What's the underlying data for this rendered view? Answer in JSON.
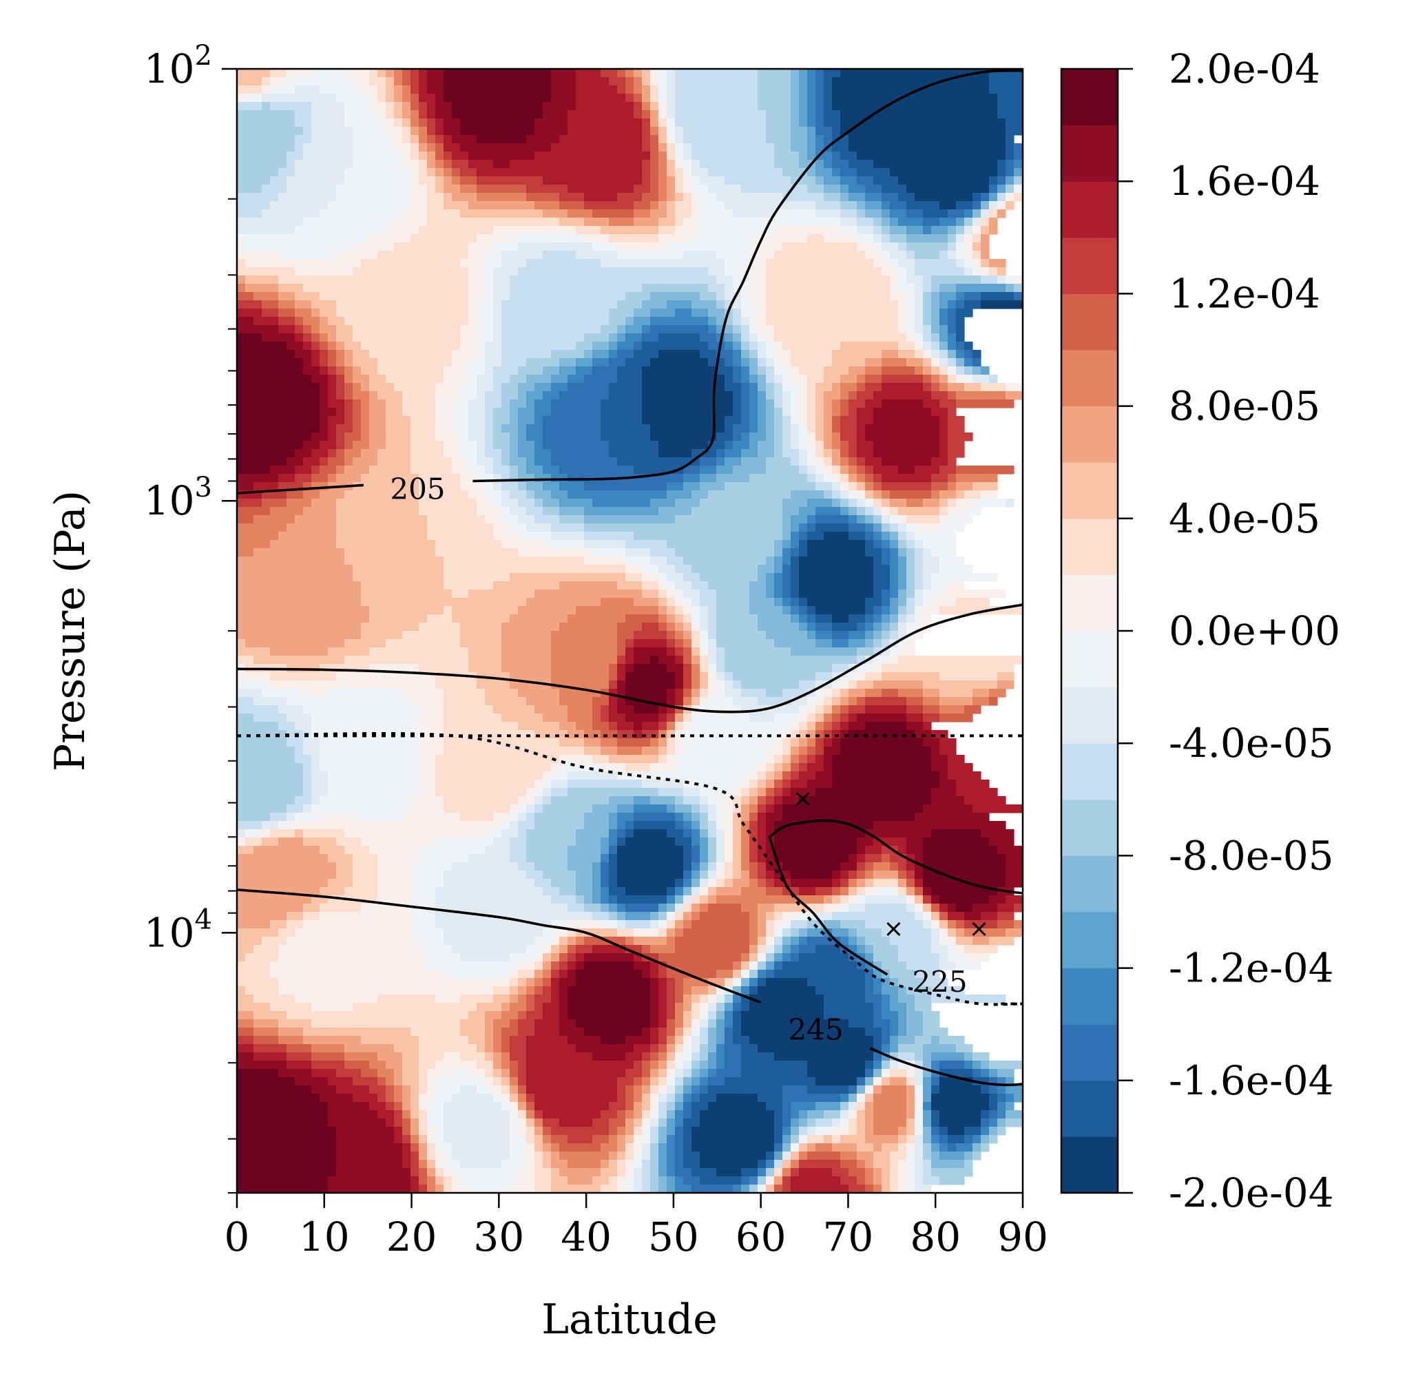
{
  "chart_data": {
    "type": "heatmap",
    "subtype": "filled-contour with overlaid line contours",
    "title": "",
    "xlabel": "Latitude",
    "ylabel": "Pressure (Pa)",
    "xlim": [
      0,
      90
    ],
    "ylim": [
      100,
      40000
    ],
    "y_scale": "log",
    "y_inverted": true,
    "grid": false,
    "x_ticks": [
      0,
      10,
      20,
      30,
      40,
      50,
      60,
      70,
      80,
      90
    ],
    "x_tick_labels": [
      "0",
      "10",
      "20",
      "30",
      "40",
      "50",
      "60",
      "70",
      "80",
      "90"
    ],
    "y_major_ticks": [
      100,
      1000,
      10000
    ],
    "y_major_tick_labels": [
      {
        "base": "10",
        "exp": "2"
      },
      {
        "base": "10",
        "exp": "3"
      },
      {
        "base": "10",
        "exp": "4"
      }
    ],
    "y_minor_ticks": [
      200,
      300,
      400,
      500,
      600,
      700,
      800,
      900,
      2000,
      3000,
      4000,
      5000,
      6000,
      7000,
      8000,
      9000,
      20000,
      30000,
      40000
    ],
    "colormap": "RdBu_r",
    "colorbar": {
      "levels": [
        -0.0002,
        -0.00018,
        -0.00016,
        -0.00014,
        -0.00012,
        -0.0001,
        -8e-05,
        -6e-05,
        -4e-05,
        -2e-05,
        0,
        2e-05,
        4e-05,
        6e-05,
        8e-05,
        0.0001,
        0.00012,
        0.00014,
        0.00016,
        0.00018,
        0.0002
      ],
      "colors": [
        "#0e3f72",
        "#1c5c9b",
        "#2e70b2",
        "#3b86c0",
        "#5ea3cd",
        "#84bad9",
        "#a8cfe4",
        "#c6def0",
        "#dfeaf3",
        "#eff3f5",
        "#f8f0ec",
        "#fbdfd0",
        "#f8c3a7",
        "#f1a582",
        "#e3835f",
        "#d36049",
        "#c13c3b",
        "#ac1c2c",
        "#8f0c25",
        "#6b0220"
      ],
      "tick_values": [
        -0.0002,
        -0.00016,
        -0.00012,
        -8e-05,
        -4e-05,
        0,
        4e-05,
        8e-05,
        0.00012,
        0.00016,
        0.0002
      ],
      "tick_labels": [
        "-2.0e-04",
        "-1.6e-04",
        "-1.2e-04",
        "-8.0e-05",
        "-4.0e-05",
        "0.0e+00",
        "4.0e-05",
        "8.0e-05",
        "1.2e-04",
        "1.6e-04",
        "2.0e-04"
      ]
    },
    "field_centers": [
      {
        "lat": 2,
        "p": 600,
        "value": 0.0002
      },
      {
        "lat": 0,
        "p": 100,
        "value": 5e-05
      },
      {
        "lat": 2,
        "p": 140,
        "value": -8e-05
      },
      {
        "lat": 12,
        "p": 180,
        "value": -2e-05
      },
      {
        "lat": 30,
        "p": 115,
        "value": 0.00019
      },
      {
        "lat": 42,
        "p": 150,
        "value": 0.00016
      },
      {
        "lat": 55,
        "p": 125,
        "value": -6e-05
      },
      {
        "lat": 83,
        "p": 170,
        "value": -0.0002
      },
      {
        "lat": 76,
        "p": 120,
        "value": -0.0002
      },
      {
        "lat": 88,
        "p": 400,
        "value": -0.0002
      },
      {
        "lat": 50,
        "p": 600,
        "value": -0.0002
      },
      {
        "lat": 43,
        "p": 650,
        "value": -0.00016
      },
      {
        "lat": 37,
        "p": 350,
        "value": -5e-05
      },
      {
        "lat": 20,
        "p": 350,
        "value": 3e-05
      },
      {
        "lat": 18,
        "p": 1300,
        "value": 4e-05
      },
      {
        "lat": 8,
        "p": 1600,
        "value": 8e-05
      },
      {
        "lat": 58,
        "p": 1200,
        "value": -7e-05
      },
      {
        "lat": 68,
        "p": 1500,
        "value": -0.0002
      },
      {
        "lat": 68,
        "p": 350,
        "value": 4e-05
      },
      {
        "lat": 77,
        "p": 700,
        "value": 0.00017
      },
      {
        "lat": 87,
        "p": 700,
        "value": 0.00012
      },
      {
        "lat": 88,
        "p": 1200,
        "value": -3e-05
      },
      {
        "lat": 85,
        "p": 2200,
        "value": 3e-05
      },
      {
        "lat": 47,
        "p": 2700,
        "value": 0.00019
      },
      {
        "lat": 40,
        "p": 2400,
        "value": 8e-05
      },
      {
        "lat": 60,
        "p": 2200,
        "value": -8e-05
      },
      {
        "lat": 2,
        "p": 4500,
        "value": -8e-05
      },
      {
        "lat": 15,
        "p": 3800,
        "value": -1e-05
      },
      {
        "lat": 30,
        "p": 4200,
        "value": 4e-05
      },
      {
        "lat": 74,
        "p": 4200,
        "value": 0.0002
      },
      {
        "lat": 89,
        "p": 3500,
        "value": 0.00014
      },
      {
        "lat": 55,
        "p": 3500,
        "value": -2e-05
      },
      {
        "lat": 47,
        "p": 7000,
        "value": -0.0002
      },
      {
        "lat": 38,
        "p": 6000,
        "value": -8e-05
      },
      {
        "lat": 66,
        "p": 6200,
        "value": 0.0002
      },
      {
        "lat": 82,
        "p": 7500,
        "value": 0.0002
      },
      {
        "lat": 76,
        "p": 10000,
        "value": -6e-05
      },
      {
        "lat": 5,
        "p": 7500,
        "value": 8e-05
      },
      {
        "lat": 10,
        "p": 11000,
        "value": 1e-05
      },
      {
        "lat": 30,
        "p": 9000,
        "value": -3e-05
      },
      {
        "lat": 43,
        "p": 14000,
        "value": 0.0002
      },
      {
        "lat": 55,
        "p": 10500,
        "value": 0.00012
      },
      {
        "lat": 62,
        "p": 15000,
        "value": -0.0002
      },
      {
        "lat": 70,
        "p": 20000,
        "value": -0.0002
      },
      {
        "lat": 68,
        "p": 13000,
        "value": -0.00018
      },
      {
        "lat": 3,
        "p": 30000,
        "value": 0.0002
      },
      {
        "lat": 14,
        "p": 35000,
        "value": 0.00018
      },
      {
        "lat": 28,
        "p": 28000,
        "value": -3e-05
      },
      {
        "lat": 37,
        "p": 22000,
        "value": 0.00016
      },
      {
        "lat": 58,
        "p": 30000,
        "value": -0.0002
      },
      {
        "lat": 66,
        "p": 40000,
        "value": 0.00015
      },
      {
        "lat": 75,
        "p": 25000,
        "value": 0.0001
      },
      {
        "lat": 82,
        "p": 25000,
        "value": -0.0002
      },
      {
        "lat": 87,
        "p": 16000,
        "value": -4e-05
      },
      {
        "lat": 89,
        "p": 35000,
        "value": -4e-05
      },
      {
        "lat": 90,
        "p": 250,
        "value": 0.0001
      }
    ],
    "line_contours": [
      {
        "label": "205",
        "label_position": {
          "lat": 20.7,
          "p": 940
        },
        "points": [
          [
            0,
            960
          ],
          [
            14.5,
            920
          ]
        ],
        "points_b": [
          [
            27,
            900
          ],
          [
            35,
            893
          ],
          [
            42,
            890
          ],
          [
            46,
            880
          ],
          [
            50,
            855
          ],
          [
            52.5,
            800
          ],
          [
            54.5,
            720
          ],
          [
            54.7,
            540
          ],
          [
            56,
            380
          ],
          [
            58,
            310
          ],
          [
            60,
            250
          ],
          [
            62,
            210
          ],
          [
            66.5,
            160
          ],
          [
            70,
            140
          ],
          [
            75,
            120
          ],
          [
            80,
            108
          ],
          [
            85,
            102
          ],
          [
            88,
            101
          ],
          [
            90,
            101
          ]
        ]
      },
      {
        "points": [
          [
            0,
            2450
          ],
          [
            10,
            2460
          ],
          [
            20,
            2500
          ],
          [
            30,
            2580
          ],
          [
            40,
            2740
          ],
          [
            50,
            3000
          ],
          [
            56,
            3080
          ],
          [
            61,
            3020
          ],
          [
            66,
            2750
          ],
          [
            72,
            2350
          ],
          [
            78,
            2000
          ],
          [
            84,
            1830
          ],
          [
            90,
            1740
          ]
        ]
      },
      {
        "label": "225",
        "style": "dotted",
        "label_position": {
          "lat": 80.5,
          "p": 13000
        },
        "points": [
          [
            0,
            3500
          ],
          [
            90,
            3500
          ]
        ],
        "points_b": [
          [
            0,
            3500
          ],
          [
            25,
            3500
          ],
          [
            40,
            4150
          ],
          [
            55,
            4650
          ],
          [
            58,
            5600
          ],
          [
            62,
            7300
          ],
          [
            66,
            9500
          ],
          [
            71,
            11700
          ],
          [
            74,
            12900
          ],
          [
            80,
            13900
          ],
          [
            85,
            14600
          ],
          [
            90,
            14600
          ]
        ]
      },
      {
        "points": [
          [
            61,
            6000
          ],
          [
            63,
            5650
          ],
          [
            67,
            5500
          ],
          [
            70,
            5600
          ],
          [
            73,
            6000
          ],
          [
            76,
            6600
          ],
          [
            80,
            7200
          ],
          [
            84,
            7700
          ],
          [
            87,
            7950
          ],
          [
            90,
            8100
          ]
        ]
      },
      {
        "points": [
          [
            61,
            6000
          ],
          [
            63,
            7800
          ],
          [
            66,
            9000
          ],
          [
            69,
            10600
          ],
          [
            74.5,
            12500
          ]
        ]
      },
      {
        "label": "245",
        "label_position": {
          "lat": 66.3,
          "p": 16800
        },
        "points": [
          [
            0,
            7950
          ],
          [
            10,
            8250
          ],
          [
            20,
            8700
          ],
          [
            30,
            9200
          ],
          [
            35,
            9600
          ],
          [
            40,
            10000
          ],
          [
            45,
            11000
          ],
          [
            53,
            12800
          ],
          [
            60,
            14500
          ]
        ],
        "points_b": [
          [
            72.5,
            18500
          ],
          [
            76,
            19800
          ],
          [
            80,
            21000
          ],
          [
            85,
            22200
          ],
          [
            88,
            22500
          ],
          [
            90,
            22400
          ]
        ]
      },
      {
        "style": "dotted",
        "points": [
          [
            87.5,
            14600
          ],
          [
            90,
            14600
          ]
        ]
      }
    ],
    "markers": [
      {
        "symbol": "×",
        "lat": 64.8,
        "p": 4900
      },
      {
        "symbol": "×",
        "lat": 75.2,
        "p": 9800
      },
      {
        "symbol": "×",
        "lat": 85,
        "p": 9800
      }
    ]
  }
}
